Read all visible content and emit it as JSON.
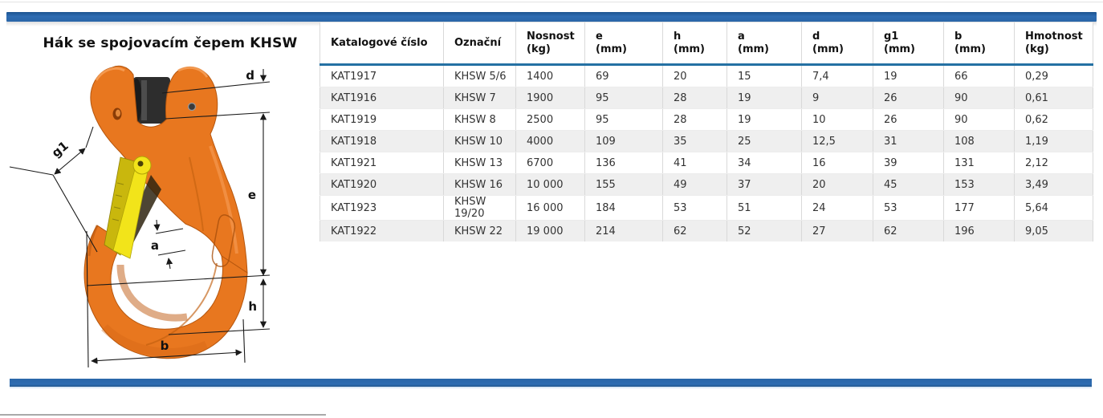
{
  "title": "Hák se spojovacím čepem KHSW",
  "diagram": {
    "description": "orange clevis sling hook with yellow safety latch, dimensioned",
    "labels": {
      "d": "d",
      "g1": "g1",
      "e": "e",
      "a": "a",
      "h": "h",
      "b": "b"
    }
  },
  "table": {
    "columns": [
      {
        "key": "katalogove_cislo",
        "label": "Katalogové číslo",
        "sub": ""
      },
      {
        "key": "oznacni",
        "label": "Označní",
        "sub": ""
      },
      {
        "key": "nosnost",
        "label": "Nosnost",
        "sub": "(kg)"
      },
      {
        "key": "e",
        "label": "e",
        "sub": "(mm)"
      },
      {
        "key": "h",
        "label": "h",
        "sub": "(mm)"
      },
      {
        "key": "a",
        "label": "a",
        "sub": "(mm)"
      },
      {
        "key": "d",
        "label": "d",
        "sub": "(mm)"
      },
      {
        "key": "g1",
        "label": "g1",
        "sub": "(mm)"
      },
      {
        "key": "b",
        "label": "b",
        "sub": "(mm)"
      },
      {
        "key": "hmotnost",
        "label": "Hmotnost",
        "sub": "(kg)"
      }
    ],
    "rows": [
      [
        "KAT1917",
        "KHSW 5/6",
        "1400",
        "69",
        "20",
        "15",
        "7,4",
        "19",
        "66",
        "0,29"
      ],
      [
        "KAT1916",
        "KHSW 7",
        "1900",
        "95",
        "28",
        "19",
        "9",
        "26",
        "90",
        "0,61"
      ],
      [
        "KAT1919",
        "KHSW 8",
        "2500",
        "95",
        "28",
        "19",
        "10",
        "26",
        "90",
        "0,62"
      ],
      [
        "KAT1918",
        "KHSW 10",
        "4000",
        "109",
        "35",
        "25",
        "12,5",
        "31",
        "108",
        "1,19"
      ],
      [
        "KAT1921",
        "KHSW 13",
        "6700",
        "136",
        "41",
        "34",
        "16",
        "39",
        "131",
        "2,12"
      ],
      [
        "KAT1920",
        "KHSW 16",
        "10 000",
        "155",
        "49",
        "37",
        "20",
        "45",
        "153",
        "3,49"
      ],
      [
        "KAT1923",
        "KHSW 19/20",
        "16 000",
        "184",
        "53",
        "51",
        "24",
        "53",
        "177",
        "5,64"
      ],
      [
        "KAT1922",
        "KHSW 22",
        "19 000",
        "214",
        "62",
        "52",
        "27",
        "62",
        "196",
        "9,05"
      ]
    ]
  },
  "colors": {
    "accent_bar_blue": "#2a66a8",
    "header_underline_blue": "#2471a3",
    "alt_row_gray": "#efefef",
    "hook_orange": "#e8771f",
    "hook_orange_dark": "#b5560e",
    "latch_yellow": "#f2e41a",
    "latch_gold": "#c9b70d",
    "pin_dark": "#2d2d2d"
  }
}
